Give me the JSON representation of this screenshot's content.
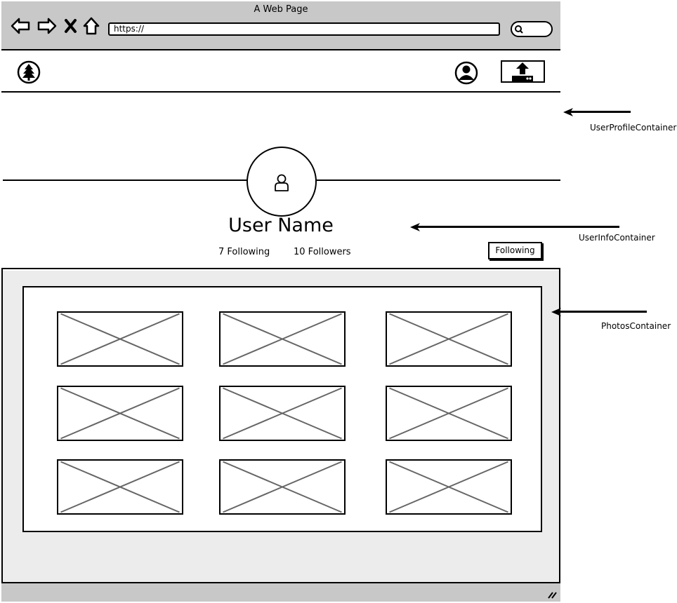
{
  "browser": {
    "title": "A Web Page",
    "url": "https://"
  },
  "icons": {
    "back": "back-arrow-icon",
    "forward": "forward-arrow-icon",
    "close": "close-icon",
    "home": "home-icon",
    "search": "search-icon",
    "logo": "tree-icon",
    "account": "user-circle-icon",
    "upload": "upload-icon",
    "profile_picture": "user-icon",
    "photo_placeholder": "image-placeholder-icon",
    "resize": "resize-grip-icon"
  },
  "profile": {
    "user_name": "User Name",
    "following_count": "7 Following",
    "followers_count": "10 Followers",
    "follow_button_label": "Following"
  },
  "photos": {
    "items": [
      "",
      "",
      "",
      "",
      "",
      "",
      "",
      "",
      ""
    ]
  },
  "annotations": {
    "profile_container": "UserProfileContainer",
    "info_container": "UserInfoContainer",
    "photos_container": "PhotosContainer"
  }
}
